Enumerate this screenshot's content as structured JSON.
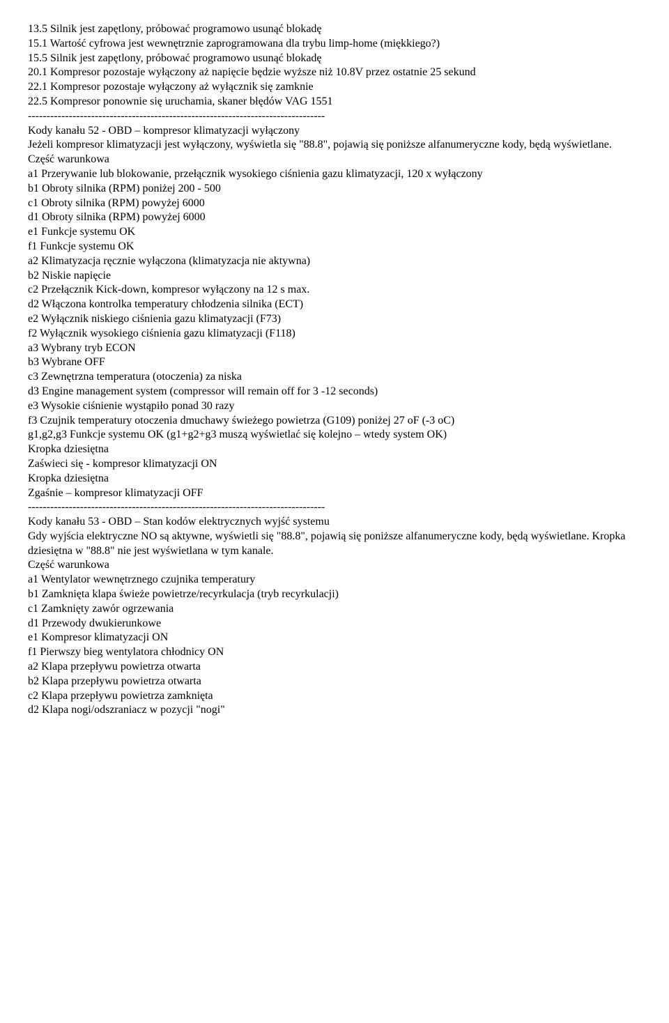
{
  "block1": [
    "13.5 Silnik jest zapętlony, próbować programowo usunąć blokadę",
    "15.1 Wartość cyfrowa jest wewnętrznie zaprogramowana dla trybu limp-home (miękkiego?)",
    "15.5 Silnik jest zapętlony, próbować programowo usunąć blokadę",
    "20.1 Kompresor pozostaje wyłączony aż napięcie będzie wyższe niż 10.8V przez ostatnie 25 sekund",
    "22.1 Kompresor pozostaje wyłączony aż wyłącznik się zamknie",
    "22.5 Kompresor ponownie się uruchamia, skaner błędów VAG 1551"
  ],
  "separator": "--------------------------------------------------------------------------------",
  "block2": [
    "Kody kanału 52 - OBD – kompresor klimatyzacji wyłączony",
    "Jeżeli kompresor klimatyzacji jest wyłączony, wyświetla się \"88.8\", pojawią się poniższe alfanumeryczne kody, będą wyświetlane.",
    "Część warunkowa",
    "a1 Przerywanie lub blokowanie, przełącznik wysokiego ciśnienia gazu klimatyzacji, 120 x wyłączony",
    "b1 Obroty silnika (RPM) poniżej 200 - 500",
    "c1 Obroty silnika (RPM) powyżej 6000",
    "d1 Obroty silnika (RPM) powyżej 6000",
    "e1 Funkcje systemu OK",
    "f1 Funkcje systemu OK",
    "a2 Klimatyzacja ręcznie wyłączona (klimatyzacja nie aktywna)",
    "b2 Niskie napięcie",
    "c2 Przełącznik Kick-down, kompresor wyłączony na 12 s max.",
    "d2 Włączona kontrolka temperatury chłodzenia silnika (ECT)",
    "e2 Wyłącznik niskiego ciśnienia gazu klimatyzacji (F73)",
    "f2 Wyłącznik wysokiego ciśnienia gazu klimatyzacji (F118)",
    "a3 Wybrany tryb ECON",
    "b3 Wybrane OFF",
    "c3 Zewnętrzna temperatura (otoczenia) za niska",
    "d3 Engine management system (compressor will remain off for 3 -12 seconds)",
    "e3 Wysokie ciśnienie wystąpiło ponad 30 razy",
    "f3 Czujnik temperatury otoczenia dmuchawy świeżego powietrza (G109) poniżej 27 oF (-3 oC)",
    "g1,g2,g3 Funkcje systemu OK (g1+g2+g3 muszą wyświetlać się kolejno – wtedy system OK)",
    "Kropka dziesiętna",
    "Zaświeci się - kompresor klimatyzacji ON",
    "Kropka dziesiętna",
    "Zgaśnie – kompresor klimatyzacji OFF"
  ],
  "block3": [
    "Kody kanału 53 - OBD – Stan kodów elektrycznych wyjść systemu",
    "Gdy wyjścia elektryczne NO są aktywne, wyświetli się \"88.8\", pojawią się poniższe alfanumeryczne kody, będą wyświetlane. Kropka dziesiętna w \"88.8\" nie jest wyświetlana w tym kanale.",
    "Część warunkowa",
    "a1 Wentylator wewnętrznego czujnika temperatury",
    "b1 Zamknięta klapa świeże powietrze/recyrkulacja (tryb recyrkulacji)",
    "c1 Zamknięty zawór ogrzewania",
    "d1 Przewody dwukierunkowe",
    "e1 Kompresor klimatyzacji ON",
    "f1 Pierwszy bieg wentylatora chłodnicy ON",
    "a2 Klapa przepływu powietrza otwarta",
    "b2 Klapa przepływu powietrza otwarta",
    "c2 Klapa przepływu powietrza zamknięta",
    "d2 Klapa nogi/odszraniacz w pozycji \"nogi\""
  ]
}
